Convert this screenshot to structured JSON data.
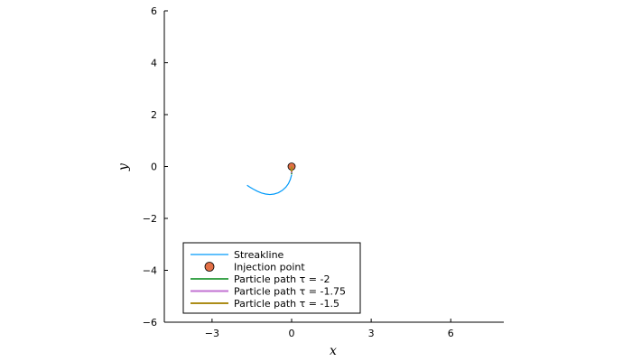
{
  "chart_data": {
    "type": "line",
    "title": "",
    "xlabel": "x",
    "ylabel": "y",
    "xlim": [
      -4.8,
      8.0
    ],
    "ylim": [
      -6,
      6
    ],
    "xticks": [
      -3,
      0,
      3,
      6
    ],
    "xtick_labels": [
      "−3",
      "0",
      "3",
      "6"
    ],
    "yticks": [
      -6,
      -4,
      -2,
      0,
      2,
      4,
      6
    ],
    "ytick_labels": [
      "−6",
      "−4",
      "−2",
      "0",
      "2",
      "4",
      "6"
    ],
    "grid": false,
    "legend_position": "bottom-left",
    "series": [
      {
        "name": "Streakline",
        "kind": "line",
        "color": "#009AFA",
        "x": [
          0.0,
          -0.05,
          -0.12,
          -0.22,
          -0.35,
          -0.5,
          -0.66,
          -0.82,
          -0.98,
          -1.14,
          -1.3,
          -1.45,
          -1.58,
          -1.68
        ],
        "y": [
          -0.32,
          -0.5,
          -0.66,
          -0.8,
          -0.92,
          -1.01,
          -1.06,
          -1.08,
          -1.06,
          -1.02,
          -0.95,
          -0.87,
          -0.79,
          -0.72
        ]
      },
      {
        "name": "Injection point",
        "kind": "marker",
        "color": "#E26F46",
        "x": [
          0.0
        ],
        "y": [
          0.0
        ]
      },
      {
        "name": "Particle path τ = -2",
        "kind": "line",
        "color": "#3DA44D",
        "x": [
          0.0,
          0.0
        ],
        "y": [
          0.0,
          -0.3
        ]
      },
      {
        "name": "Particle path τ = -1.75",
        "kind": "line",
        "color": "#C271D2",
        "x": [
          0.0,
          0.0
        ],
        "y": [
          0.0,
          -0.25
        ]
      },
      {
        "name": "Particle path τ = -1.5",
        "kind": "line",
        "color": "#AC8D18",
        "x": [
          0.0,
          0.0
        ],
        "y": [
          0.0,
          -0.2
        ]
      }
    ]
  }
}
